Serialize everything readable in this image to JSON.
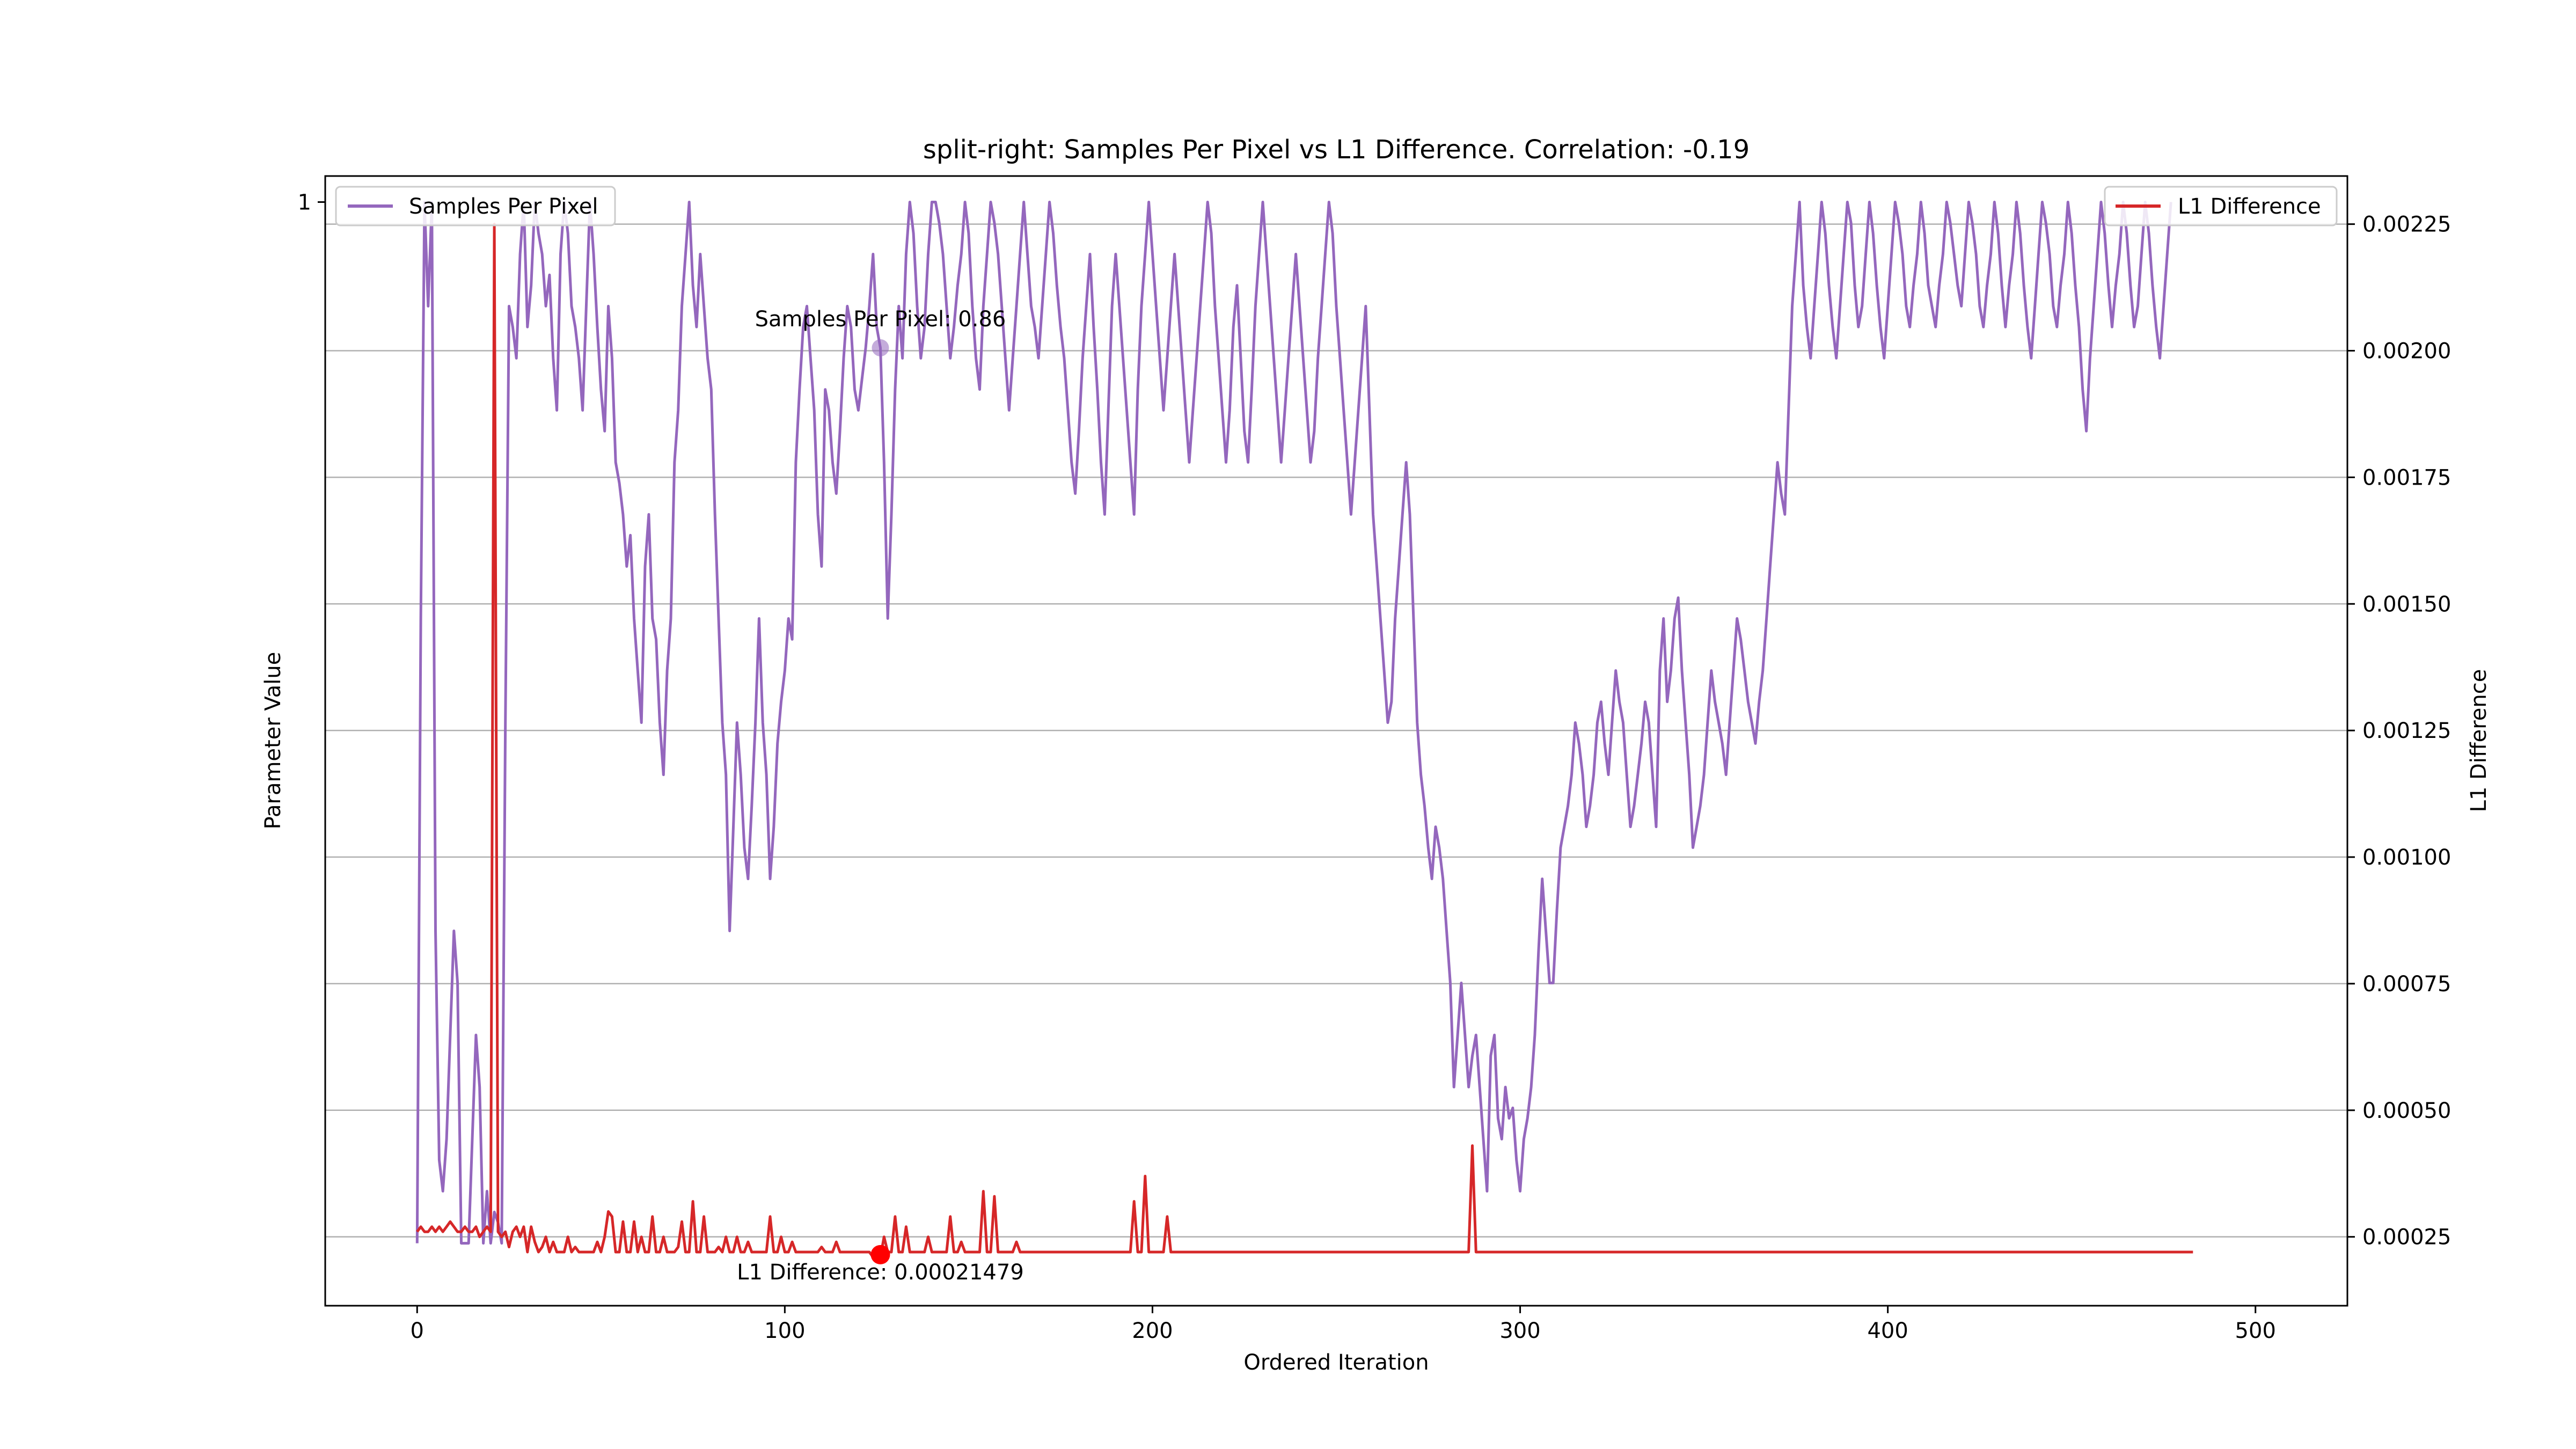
{
  "chart_data": {
    "type": "line",
    "title": "split-right: Samples Per Pixel vs L1 Difference. Correlation: -0.19",
    "xlabel": "Ordered Iteration",
    "ylabel_left": "Parameter Value",
    "ylabel_right": "L1 Difference",
    "xlim": [
      -25,
      525
    ],
    "ylim_left": [
      -0.06,
      1.025
    ],
    "ylim_right": [
      0.000114,
      0.002345
    ],
    "x_ticks": [
      0,
      100,
      200,
      300,
      400,
      500
    ],
    "y_left_ticks": [
      1
    ],
    "y_right_ticks": [
      "0.00025",
      "0.00050",
      "0.00075",
      "0.00100",
      "0.00125",
      "0.00150",
      "0.00175",
      "0.00200",
      "0.00225"
    ],
    "grid": "horizontal-right-axis",
    "legend_left": {
      "placement": "top-left",
      "label": "Samples Per Pixel",
      "color": "#9467bd"
    },
    "legend_right": {
      "placement": "top-right",
      "label": "L1 Difference",
      "color": "#d62728"
    },
    "annotations": [
      {
        "text": "Samples Per Pixel: 0.86",
        "x": 126,
        "y": 0.86,
        "axis": "left",
        "color": "#9467bd"
      },
      {
        "text": "L1 Difference: 0.00021479",
        "x": 126,
        "y": 0.00021479,
        "axis": "right",
        "color": "#ff0000"
      }
    ],
    "series": [
      {
        "name": "Samples Per Pixel",
        "axis": "left",
        "color": "#9467bd",
        "x_start": 0,
        "x_step": 1,
        "values": [
          0.0,
          0.6,
          1.0,
          0.9,
          1.0,
          0.3,
          0.08,
          0.05,
          0.1,
          0.2,
          0.3,
          0.25,
          0.0,
          0.0,
          0.0,
          0.1,
          0.2,
          0.15,
          0.0,
          0.05,
          0.0,
          0.03,
          0.02,
          0.0,
          0.5,
          0.9,
          0.88,
          0.85,
          0.95,
          1.0,
          0.88,
          0.92,
          1.0,
          0.97,
          0.95,
          0.9,
          0.93,
          0.85,
          0.8,
          0.95,
          1.0,
          0.97,
          0.9,
          0.88,
          0.85,
          0.8,
          0.9,
          1.0,
          0.95,
          0.88,
          0.82,
          0.78,
          0.9,
          0.85,
          0.75,
          0.73,
          0.7,
          0.65,
          0.68,
          0.6,
          0.55,
          0.5,
          0.65,
          0.7,
          0.6,
          0.58,
          0.5,
          0.45,
          0.55,
          0.6,
          0.75,
          0.8,
          0.9,
          0.95,
          1.0,
          0.92,
          0.88,
          0.95,
          0.9,
          0.85,
          0.82,
          0.7,
          0.6,
          0.5,
          0.45,
          0.3,
          0.4,
          0.5,
          0.45,
          0.38,
          0.35,
          0.42,
          0.5,
          0.6,
          0.5,
          0.45,
          0.35,
          0.4,
          0.48,
          0.52,
          0.55,
          0.6,
          0.58,
          0.75,
          0.82,
          0.88,
          0.9,
          0.85,
          0.8,
          0.7,
          0.65,
          0.82,
          0.8,
          0.75,
          0.72,
          0.78,
          0.85,
          0.9,
          0.88,
          0.82,
          0.8,
          0.83,
          0.86,
          0.9,
          0.95,
          0.88,
          0.86,
          0.75,
          0.6,
          0.7,
          0.82,
          0.9,
          0.85,
          0.95,
          1.0,
          0.97,
          0.9,
          0.85,
          0.88,
          0.95,
          1.0,
          1.0,
          0.98,
          0.95,
          0.9,
          0.85,
          0.88,
          0.92,
          0.95,
          1.0,
          0.97,
          0.9,
          0.85,
          0.82,
          0.9,
          0.95,
          1.0,
          0.98,
          0.95,
          0.9,
          0.85,
          0.8,
          0.85,
          0.9,
          0.95,
          1.0,
          0.95,
          0.9,
          0.88,
          0.85,
          0.9,
          0.95,
          1.0,
          0.97,
          0.92,
          0.88,
          0.85,
          0.8,
          0.75,
          0.72,
          0.78,
          0.85,
          0.9,
          0.95,
          0.88,
          0.82,
          0.75,
          0.7,
          0.8,
          0.9,
          0.95,
          0.9,
          0.85,
          0.8,
          0.75,
          0.7,
          0.82,
          0.9,
          0.95,
          1.0,
          0.95,
          0.9,
          0.85,
          0.8,
          0.85,
          0.9,
          0.95,
          0.9,
          0.85,
          0.8,
          0.75,
          0.8,
          0.85,
          0.9,
          0.95,
          1.0,
          0.97,
          0.9,
          0.85,
          0.8,
          0.75,
          0.8,
          0.88,
          0.92,
          0.85,
          0.78,
          0.75,
          0.82,
          0.9,
          0.95,
          1.0,
          0.95,
          0.9,
          0.85,
          0.8,
          0.75,
          0.8,
          0.85,
          0.9,
          0.95,
          0.9,
          0.85,
          0.8,
          0.75,
          0.78,
          0.85,
          0.9,
          0.95,
          1.0,
          0.97,
          0.9,
          0.85,
          0.8,
          0.75,
          0.7,
          0.75,
          0.8,
          0.85,
          0.9,
          0.8,
          0.7,
          0.65,
          0.6,
          0.55,
          0.5,
          0.52,
          0.6,
          0.65,
          0.7,
          0.75,
          0.7,
          0.6,
          0.5,
          0.45,
          0.42,
          0.38,
          0.35,
          0.4,
          0.38,
          0.35,
          0.3,
          0.25,
          0.15,
          0.2,
          0.25,
          0.2,
          0.15,
          0.18,
          0.2,
          0.15,
          0.1,
          0.05,
          0.18,
          0.2,
          0.12,
          0.1,
          0.15,
          0.12,
          0.13,
          0.08,
          0.05,
          0.1,
          0.12,
          0.15,
          0.2,
          0.28,
          0.35,
          0.3,
          0.25,
          0.25,
          0.32,
          0.38,
          0.4,
          0.42,
          0.45,
          0.5,
          0.48,
          0.45,
          0.4,
          0.42,
          0.45,
          0.5,
          0.52,
          0.48,
          0.45,
          0.5,
          0.55,
          0.52,
          0.5,
          0.45,
          0.4,
          0.42,
          0.45,
          0.48,
          0.52,
          0.5,
          0.45,
          0.4,
          0.55,
          0.6,
          0.52,
          0.55,
          0.6,
          0.62,
          0.55,
          0.5,
          0.45,
          0.38,
          0.4,
          0.42,
          0.45,
          0.5,
          0.55,
          0.52,
          0.5,
          0.48,
          0.45,
          0.5,
          0.55,
          0.6,
          0.58,
          0.55,
          0.52,
          0.5,
          0.48,
          0.52,
          0.55,
          0.6,
          0.65,
          0.7,
          0.75,
          0.72,
          0.7,
          0.8,
          0.9,
          0.95,
          1.0,
          0.92,
          0.88,
          0.85,
          0.9,
          0.95,
          1.0,
          0.97,
          0.92,
          0.88,
          0.85,
          0.9,
          0.95,
          1.0,
          0.98,
          0.92,
          0.88,
          0.9,
          0.95,
          1.0,
          0.97,
          0.92,
          0.88,
          0.85,
          0.9,
          0.95,
          1.0,
          0.98,
          0.95,
          0.9,
          0.88,
          0.92,
          0.95,
          1.0,
          0.97,
          0.92,
          0.9,
          0.88,
          0.92,
          0.95,
          1.0,
          0.98,
          0.95,
          0.92,
          0.9,
          0.95,
          1.0,
          0.98,
          0.95,
          0.9,
          0.88,
          0.92,
          0.95,
          1.0,
          0.97,
          0.92,
          0.88,
          0.92,
          0.95,
          1.0,
          0.97,
          0.92,
          0.88,
          0.85,
          0.9,
          0.95,
          1.0,
          0.98,
          0.95,
          0.9,
          0.88,
          0.92,
          0.95,
          1.0,
          0.97,
          0.92,
          0.88,
          0.82,
          0.78,
          0.85,
          0.9,
          0.95,
          1.0,
          0.97,
          0.92,
          0.88,
          0.92,
          0.95,
          1.0,
          0.97,
          0.92,
          0.88,
          0.9,
          0.95,
          1.0,
          0.97,
          0.92,
          0.88,
          0.85,
          0.9,
          0.95,
          1.0
        ]
      },
      {
        "name": "L1 Difference",
        "axis": "right",
        "color": "#d62728",
        "x_start": 0,
        "x_step": 1,
        "values": [
          0.00026,
          0.00027,
          0.00026,
          0.00026,
          0.00027,
          0.00026,
          0.00027,
          0.00026,
          0.00027,
          0.00028,
          0.00027,
          0.00026,
          0.00026,
          0.00027,
          0.00026,
          0.00026,
          0.00027,
          0.00025,
          0.00026,
          0.00027,
          0.00026,
          0.00225,
          0.00026,
          0.00025,
          0.00026,
          0.00023,
          0.00026,
          0.00027,
          0.00025,
          0.00027,
          0.00022,
          0.00027,
          0.00024,
          0.00022,
          0.00023,
          0.00025,
          0.00022,
          0.00024,
          0.00022,
          0.00022,
          0.00022,
          0.00025,
          0.00022,
          0.00023,
          0.00022,
          0.00022,
          0.00022,
          0.00022,
          0.00022,
          0.00024,
          0.00022,
          0.00025,
          0.0003,
          0.00029,
          0.00022,
          0.00022,
          0.00028,
          0.00022,
          0.00022,
          0.00028,
          0.00022,
          0.00025,
          0.00022,
          0.00022,
          0.00029,
          0.00022,
          0.00022,
          0.00025,
          0.00022,
          0.00022,
          0.00022,
          0.00023,
          0.00028,
          0.00022,
          0.00022,
          0.00032,
          0.00022,
          0.00022,
          0.00029,
          0.00022,
          0.00022,
          0.00022,
          0.00023,
          0.00022,
          0.00025,
          0.00022,
          0.00022,
          0.00025,
          0.00022,
          0.00022,
          0.00024,
          0.00022,
          0.00022,
          0.00022,
          0.00022,
          0.00022,
          0.00029,
          0.00022,
          0.00022,
          0.00025,
          0.00022,
          0.00022,
          0.00024,
          0.00022,
          0.00022,
          0.00022,
          0.00022,
          0.00022,
          0.00022,
          0.00022,
          0.00023,
          0.00022,
          0.00022,
          0.00022,
          0.00024,
          0.00022,
          0.00022,
          0.00022,
          0.00022,
          0.00022,
          0.00022,
          0.00022,
          0.00022,
          0.00022,
          0.00021,
          0.00022,
          0.00021,
          0.00025,
          0.00022,
          0.00022,
          0.00029,
          0.00022,
          0.00022,
          0.00027,
          0.00022,
          0.00022,
          0.00022,
          0.00022,
          0.00022,
          0.00025,
          0.00022,
          0.00022,
          0.00022,
          0.00022,
          0.00022,
          0.00029,
          0.00022,
          0.00022,
          0.00024,
          0.00022,
          0.00022,
          0.00022,
          0.00022,
          0.00022,
          0.00034,
          0.00022,
          0.00022,
          0.00033,
          0.00022,
          0.00022,
          0.00022,
          0.00022,
          0.00022,
          0.00024,
          0.00022,
          0.00022,
          0.00022,
          0.00022,
          0.00022,
          0.00022,
          0.00022,
          0.00022,
          0.00022,
          0.00022,
          0.00022,
          0.00022,
          0.00022,
          0.00022,
          0.00022,
          0.00022,
          0.00022,
          0.00022,
          0.00022,
          0.00022,
          0.00022,
          0.00022,
          0.00022,
          0.00022,
          0.00022,
          0.00022,
          0.00022,
          0.00022,
          0.00022,
          0.00022,
          0.00022,
          0.00032,
          0.00022,
          0.00022,
          0.00037,
          0.00022,
          0.00022,
          0.00022,
          0.00022,
          0.00022,
          0.00029,
          0.00022,
          0.00022,
          0.00022,
          0.00022,
          0.00022,
          0.00022,
          0.00022,
          0.00022,
          0.00022,
          0.00022,
          0.00022,
          0.00022,
          0.00022,
          0.00022,
          0.00022,
          0.00022,
          0.00022,
          0.00022,
          0.00022,
          0.00022,
          0.00022,
          0.00022,
          0.00022,
          0.00022,
          0.00022,
          0.00022,
          0.00022,
          0.00022,
          0.00022,
          0.00022,
          0.00022,
          0.00022,
          0.00022,
          0.00022,
          0.00022,
          0.00022,
          0.00022,
          0.00022,
          0.00022,
          0.00022,
          0.00022,
          0.00022,
          0.00022,
          0.00022,
          0.00022,
          0.00022,
          0.00022,
          0.00022,
          0.00022,
          0.00022,
          0.00022,
          0.00022,
          0.00022,
          0.00022,
          0.00022,
          0.00022,
          0.00022,
          0.00022,
          0.00022,
          0.00022,
          0.00022,
          0.00022,
          0.00022,
          0.00022,
          0.00022,
          0.00022,
          0.00022,
          0.00022,
          0.00022,
          0.00022,
          0.00022,
          0.00022,
          0.00022,
          0.00022,
          0.00022,
          0.00022,
          0.00022,
          0.00022,
          0.00022,
          0.00022,
          0.00022,
          0.00022,
          0.00043,
          0.00022,
          0.00022,
          0.00022,
          0.00022,
          0.00022,
          0.00022,
          0.00022,
          0.00022,
          0.00022,
          0.00022,
          0.00022,
          0.00022,
          0.00022,
          0.00022,
          0.00022,
          0.00022,
          0.00022,
          0.00022,
          0.00022,
          0.00022,
          0.00022,
          0.00022,
          0.00022,
          0.00022,
          0.00022,
          0.00022,
          0.00022,
          0.00022,
          0.00022,
          0.00022,
          0.00022,
          0.00022,
          0.00022,
          0.00022,
          0.00022,
          0.00022,
          0.00022,
          0.00022,
          0.00022,
          0.00022,
          0.00022,
          0.00022,
          0.00022,
          0.00022,
          0.00022,
          0.00022,
          0.00022,
          0.00022,
          0.00022,
          0.00022,
          0.00022,
          0.00022,
          0.00022,
          0.00022,
          0.00022,
          0.00022,
          0.00022,
          0.00022,
          0.00022,
          0.00022,
          0.00022,
          0.00022,
          0.00022,
          0.00022,
          0.00022,
          0.00022,
          0.00022,
          0.00022,
          0.00022,
          0.00022,
          0.00022,
          0.00022,
          0.00022,
          0.00022,
          0.00022,
          0.00022,
          0.00022,
          0.00022,
          0.00022,
          0.00022,
          0.00022,
          0.00022,
          0.00022,
          0.00022,
          0.00022,
          0.00022,
          0.00022,
          0.00022,
          0.00022,
          0.00022,
          0.00022,
          0.00022,
          0.00022,
          0.00022,
          0.00022,
          0.00022,
          0.00022,
          0.00022,
          0.00022,
          0.00022,
          0.00022,
          0.00022,
          0.00022,
          0.00022,
          0.00022,
          0.00022,
          0.00022,
          0.00022,
          0.00022,
          0.00022,
          0.00022,
          0.00022,
          0.00022,
          0.00022,
          0.00022,
          0.00022,
          0.00022,
          0.00022,
          0.00022,
          0.00022,
          0.00022,
          0.00022,
          0.00022,
          0.00022,
          0.00022,
          0.00022,
          0.00022,
          0.00022,
          0.00022,
          0.00022,
          0.00022,
          0.00022,
          0.00022,
          0.00022,
          0.00022,
          0.00022,
          0.00022,
          0.00022,
          0.00022,
          0.00022,
          0.00022,
          0.00022,
          0.00022,
          0.00022,
          0.00022,
          0.00022,
          0.00022,
          0.00022,
          0.00022,
          0.00022,
          0.00022,
          0.00022,
          0.00022,
          0.00022,
          0.00022,
          0.00022,
          0.00022,
          0.00022,
          0.00022,
          0.00022,
          0.00022,
          0.00022,
          0.00022,
          0.00022,
          0.00022,
          0.00022,
          0.00022,
          0.00022,
          0.00022,
          0.00022,
          0.00022,
          0.00022,
          0.00022,
          0.00022,
          0.00022,
          0.00022,
          0.00022,
          0.00022,
          0.00022,
          0.00022,
          0.00022,
          0.00022,
          0.00022,
          0.00022,
          0.00022,
          0.00022,
          0.00022,
          0.00022,
          0.00022,
          0.00022,
          0.00022,
          0.00022,
          0.00022,
          0.00022,
          0.00022,
          0.00022
        ]
      }
    ]
  }
}
